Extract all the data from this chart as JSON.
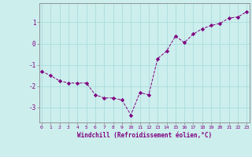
{
  "x": [
    0,
    1,
    2,
    3,
    4,
    5,
    6,
    7,
    8,
    9,
    10,
    11,
    12,
    13,
    14,
    15,
    16,
    17,
    18,
    19,
    20,
    21,
    22,
    23
  ],
  "y": [
    -1.3,
    -1.5,
    -1.75,
    -1.85,
    -1.85,
    -1.85,
    -2.4,
    -2.55,
    -2.55,
    -2.65,
    -3.35,
    -2.3,
    -2.4,
    -0.7,
    -0.35,
    0.35,
    0.05,
    0.45,
    0.7,
    0.85,
    0.95,
    1.2,
    1.25,
    1.5
  ],
  "line_color": "#800080",
  "marker": "D",
  "marker_size": 2.2,
  "bg_color": "#cceeed",
  "grid_color": "#aadddd",
  "xlabel": "Windchill (Refroidissement éolien,°C)",
  "xlabel_color": "#800080",
  "tick_color": "#800080",
  "yticks": [
    -3,
    -2,
    -1,
    0,
    1
  ],
  "xticks": [
    0,
    1,
    2,
    3,
    4,
    5,
    6,
    7,
    8,
    9,
    10,
    11,
    12,
    13,
    14,
    15,
    16,
    17,
    18,
    19,
    20,
    21,
    22,
    23
  ],
  "ylim": [
    -3.7,
    1.9
  ],
  "xlim": [
    -0.3,
    23.3
  ],
  "spine_color": "#888888"
}
